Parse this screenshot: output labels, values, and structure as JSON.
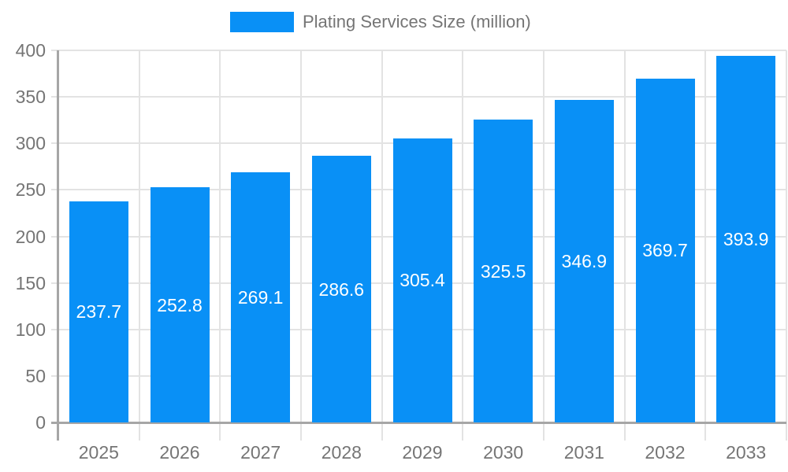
{
  "chart_data": {
    "type": "bar",
    "title": "",
    "legend": {
      "label": "Plating Services Size (million)",
      "position": "top-center"
    },
    "categories": [
      "2025",
      "2026",
      "2027",
      "2028",
      "2029",
      "2030",
      "2031",
      "2032",
      "2033"
    ],
    "series": [
      {
        "name": "Plating Services Size (million)",
        "values": [
          237.7,
          252.8,
          269.1,
          286.6,
          305.4,
          325.5,
          346.9,
          369.7,
          393.9
        ]
      }
    ],
    "bar_value_labels": [
      "237.7",
      "252.8",
      "269.1",
      "286.6",
      "305.4",
      "325.5",
      "346.9",
      "369.7",
      "393.9"
    ],
    "xlabel": "",
    "ylabel": "",
    "ylim": [
      0,
      400
    ],
    "yticks": [
      0,
      50,
      100,
      150,
      200,
      250,
      300,
      350,
      400
    ],
    "ytick_labels": [
      "0",
      "50",
      "100",
      "150",
      "200",
      "250",
      "300",
      "350",
      "400"
    ],
    "grid": "horizontal and vertical category-boundary gridlines",
    "colors": {
      "bar": "#0990f6",
      "bar_label_text": "#ffffff",
      "axis_text": "#757575",
      "gridline": "#e3e3e3",
      "axis_line": "#a6a6a6",
      "background": "#ffffff"
    }
  }
}
